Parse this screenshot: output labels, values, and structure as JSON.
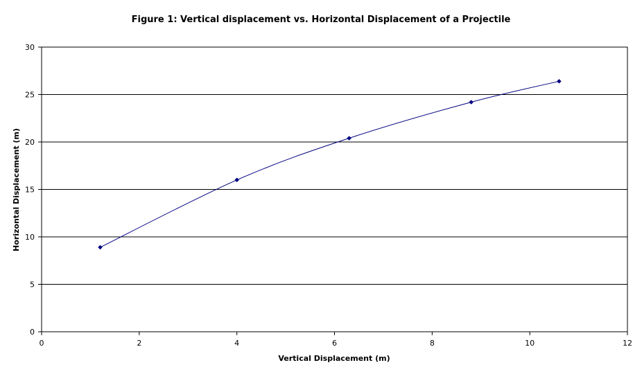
{
  "chart_data": {
    "type": "line",
    "title": "Figure 1: Vertical displacement vs. Horizontal Displacement of a Projectile",
    "xlabel": "Vertical Displacement (m)",
    "ylabel": "Horizontal Displacement (m)",
    "xlim": [
      0,
      12
    ],
    "ylim": [
      0,
      30
    ],
    "x_ticks": [
      0,
      2,
      4,
      6,
      8,
      10,
      12
    ],
    "y_ticks": [
      0,
      5,
      10,
      15,
      20,
      25,
      30
    ],
    "grid": "horizontal",
    "legend": "none",
    "series": [
      {
        "x": [
          1.2,
          4.0,
          6.3,
          8.8,
          10.6
        ],
        "y": [
          8.9,
          16.0,
          20.4,
          24.2,
          26.4
        ],
        "line_color": "#000080",
        "marker": "diamond",
        "smoothed": true
      }
    ]
  }
}
